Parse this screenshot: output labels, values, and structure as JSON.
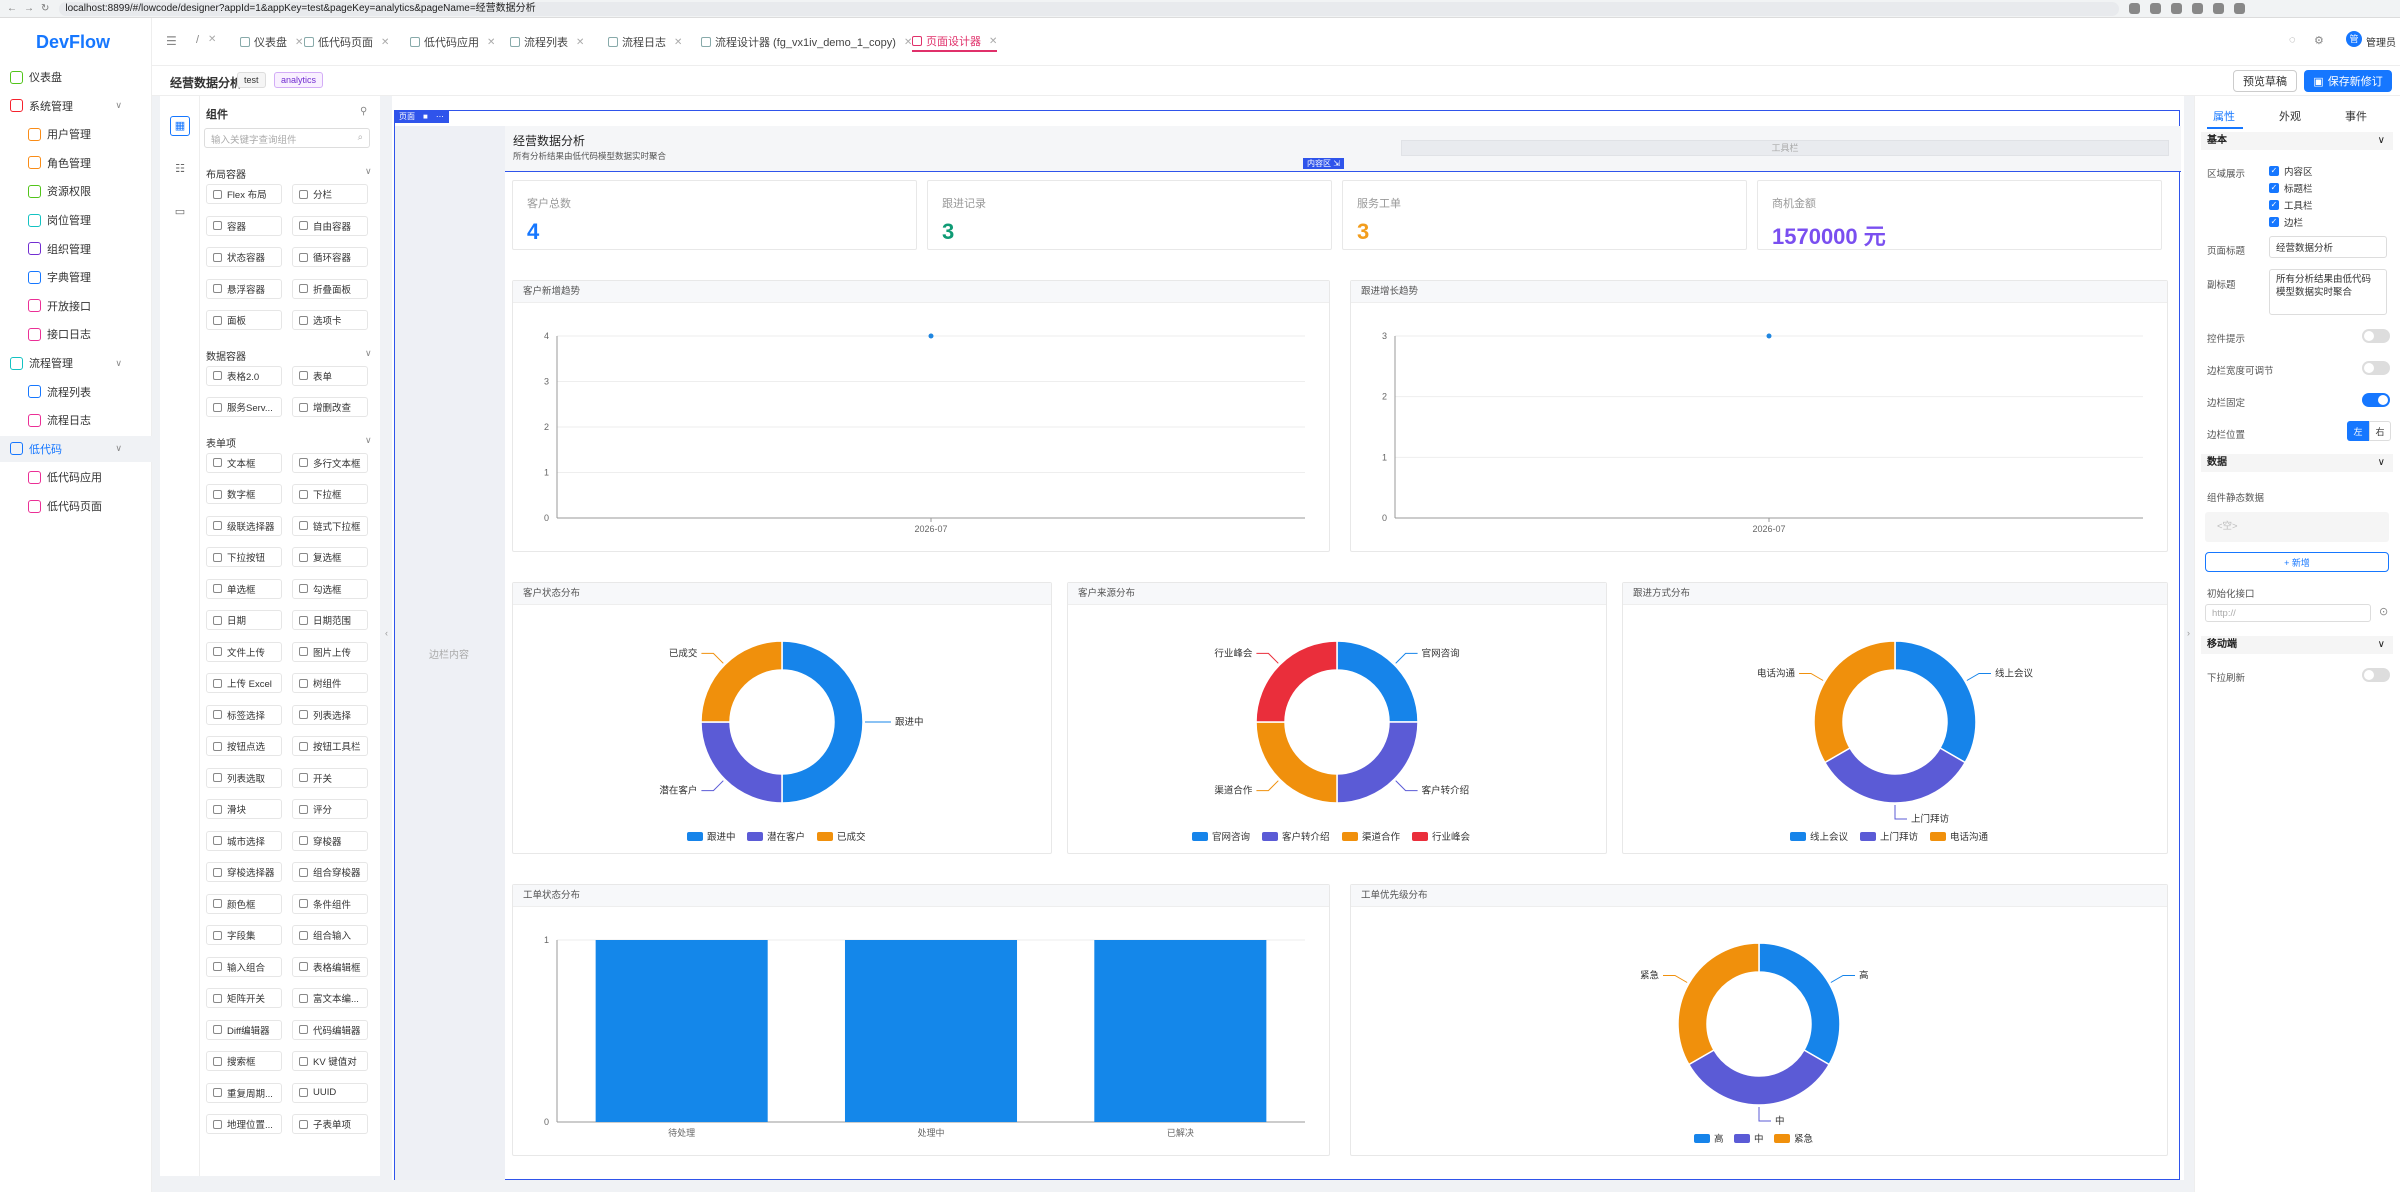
{
  "browser": {
    "url": "localhost:8899/#/lowcode/designer?appId=1&appKey=test&pageKey=analytics&pageName=经营数据分析"
  },
  "sidebar": {
    "logo": "DevFlow",
    "items": [
      {
        "label": "仪表盘",
        "icon": "dashboard-icon",
        "color": "#52c41a",
        "level": 0
      },
      {
        "label": "系统管理",
        "icon": "settings-icon",
        "color": "#f5222d",
        "level": 0,
        "chev": "∨"
      },
      {
        "label": "用户管理",
        "icon": "user-icon",
        "color": "#fa8c16",
        "level": 1
      },
      {
        "label": "角色管理",
        "icon": "role-icon",
        "color": "#fa8c16",
        "level": 1
      },
      {
        "label": "资源权限",
        "icon": "shield-icon",
        "color": "#52c41a",
        "level": 1
      },
      {
        "label": "岗位管理",
        "icon": "position-icon",
        "color": "#13c2c2",
        "level": 1
      },
      {
        "label": "组织管理",
        "icon": "org-icon",
        "color": "#722ed1",
        "level": 1
      },
      {
        "label": "字典管理",
        "icon": "dict-icon",
        "color": "#1677ff",
        "level": 1
      },
      {
        "label": "开放接口",
        "icon": "link-icon",
        "color": "#eb2f96",
        "level": 1
      },
      {
        "label": "接口日志",
        "icon": "log-icon",
        "color": "#eb2f96",
        "level": 1
      },
      {
        "label": "流程管理",
        "icon": "flow-icon",
        "color": "#13c2c2",
        "level": 0,
        "chev": "∨"
      },
      {
        "label": "流程列表",
        "icon": "list-icon",
        "color": "#1677ff",
        "level": 1
      },
      {
        "label": "流程日志",
        "icon": "doc-icon",
        "color": "#eb2f96",
        "level": 1
      },
      {
        "label": "低代码",
        "icon": "apps-icon",
        "color": "#1677ff",
        "level": 0,
        "chev": "∨",
        "active": true
      },
      {
        "label": "低代码应用",
        "icon": "apps-icon",
        "color": "#eb2f96",
        "level": 1
      },
      {
        "label": "低代码页面",
        "icon": "page-icon",
        "color": "#eb2f96",
        "level": 1
      }
    ]
  },
  "topbar": {
    "menu_glyph": "☰",
    "slash": "/",
    "user": "管理员",
    "avatar": "管",
    "tabs": [
      {
        "label": "仪表盘"
      },
      {
        "label": "低代码页面"
      },
      {
        "label": "低代码应用"
      },
      {
        "label": "流程列表"
      },
      {
        "label": "流程日志"
      },
      {
        "label": "流程设计器 (fg_vx1iv_demo_1_copy)"
      },
      {
        "label": "页面设计器",
        "active": true
      }
    ]
  },
  "pagehead": {
    "title": "经营数据分析",
    "tag1": "test",
    "tag2": "analytics",
    "preview": "预览草稿",
    "save": "保存新修订"
  },
  "components": {
    "title": "组件",
    "search_placeholder": "输入关键字查询组件",
    "groups": [
      {
        "name": "布局容器",
        "items": [
          "Flex 布局",
          "分栏",
          "容器",
          "自由容器",
          "状态容器",
          "循环容器",
          "悬浮容器",
          "折叠面板",
          "面板",
          "选项卡"
        ]
      },
      {
        "name": "数据容器",
        "items": [
          "表格2.0",
          "表单",
          "服务Serv...",
          "增删改查"
        ]
      },
      {
        "name": "表单项",
        "items": [
          "文本框",
          "多行文本框",
          "数字框",
          "下拉框",
          "级联选择器",
          "链式下拉框",
          "下拉按钮",
          "复选框",
          "单选框",
          "勾选框",
          "日期",
          "日期范围",
          "文件上传",
          "图片上传",
          "上传 Excel",
          "树组件",
          "标签选择",
          "列表选择",
          "按钮点选",
          "按钮工具栏",
          "列表选取",
          "开关",
          "滑块",
          "评分",
          "城市选择",
          "穿梭器",
          "穿梭选择器",
          "组合穿梭器",
          "颜色框",
          "条件组件",
          "字段集",
          "组合输入",
          "输入组合",
          "表格编辑框",
          "矩阵开关",
          "富文本编...",
          "Diff编辑器",
          "代码编辑器",
          "搜索框",
          "KV 键值对",
          "重复周期...",
          "UUID",
          "地理位置...",
          "子表单项"
        ]
      }
    ]
  },
  "canvas": {
    "page_label": "页面",
    "page_badge": "页面",
    "side_label": "边栏内容",
    "page_title": "经营数据分析",
    "page_subtitle": "所有分析结果由低代码模型数据实时聚合",
    "content_tag": "内容区",
    "toolbar_label": "工具栏",
    "stats": [
      {
        "label": "客户总数",
        "value": "4",
        "color": "#1677ff"
      },
      {
        "label": "跟进记录",
        "value": "3",
        "color": "#0f9b75"
      },
      {
        "label": "服务工单",
        "value": "3",
        "color": "#f29d1d"
      },
      {
        "label": "商机金额",
        "value": "1570000 元",
        "color": "#7a4ff0"
      }
    ]
  },
  "chart_data": [
    {
      "type": "line",
      "title": "客户新增趋势",
      "x": [
        "2026-07"
      ],
      "y": [
        4
      ],
      "ylim": [
        0,
        4
      ],
      "yticks": [
        0,
        1,
        2,
        3,
        4
      ]
    },
    {
      "type": "line",
      "title": "跟进增长趋势",
      "x": [
        "2026-07"
      ],
      "y": [
        3
      ],
      "ylim": [
        0,
        3
      ],
      "yticks": [
        0,
        1,
        2,
        3
      ]
    },
    {
      "type": "pie",
      "title": "客户状态分布",
      "labels": [
        "跟进中",
        "潜在客户",
        "已成交"
      ],
      "values": [
        2,
        1,
        1
      ],
      "colors": [
        "#1684ea",
        "#5b5bd6",
        "#f0900c"
      ]
    },
    {
      "type": "pie",
      "title": "客户来源分布",
      "labels": [
        "官网咨询",
        "客户转介绍",
        "渠道合作",
        "行业峰会"
      ],
      "values": [
        1,
        1,
        1,
        1
      ],
      "colors": [
        "#1684ea",
        "#5b5bd6",
        "#f0900c",
        "#ea2e3b"
      ]
    },
    {
      "type": "pie",
      "title": "跟进方式分布",
      "labels": [
        "线上会议",
        "上门拜访",
        "电话沟通"
      ],
      "values": [
        1,
        1,
        1
      ],
      "colors": [
        "#1684ea",
        "#5b5bd6",
        "#f0900c"
      ]
    },
    {
      "type": "bar",
      "title": "工单状态分布",
      "categories": [
        "待处理",
        "处理中",
        "已解决"
      ],
      "values": [
        1,
        1,
        1
      ],
      "ylim": [
        0,
        1
      ],
      "yticks": [
        0,
        1
      ],
      "color": "#1487ea"
    },
    {
      "type": "pie",
      "title": "工单优先级分布",
      "labels": [
        "高",
        "中",
        "紧急"
      ],
      "values": [
        1,
        1,
        1
      ],
      "colors": [
        "#1684ea",
        "#5b5bd6",
        "#f0900c"
      ]
    }
  ],
  "props": {
    "tabs": [
      "属性",
      "外观",
      "事件"
    ],
    "basic": {
      "section": "基本",
      "area_label": "区域展示",
      "areas": [
        "内容区",
        "标题栏",
        "工具栏",
        "边栏"
      ],
      "title_label": "页面标题",
      "title_value": "经营数据分析",
      "subtitle_label": "副标题",
      "subtitle_value": "所有分析结果由低代码模型数据实时聚合",
      "hint_label": "控件提示",
      "resizable_label": "边栏宽度可调节",
      "fixed_label": "边栏固定",
      "pos_label": "边栏位置",
      "pos_left": "左",
      "pos_right": "右"
    },
    "data": {
      "section": "数据",
      "static_label": "组件静态数据",
      "static_placeholder": "<空>",
      "add_label": "+ 新增",
      "init_label": "初始化接口",
      "init_placeholder": "http://"
    },
    "mobile": {
      "section": "移动端",
      "pull_label": "下拉刷新"
    }
  }
}
